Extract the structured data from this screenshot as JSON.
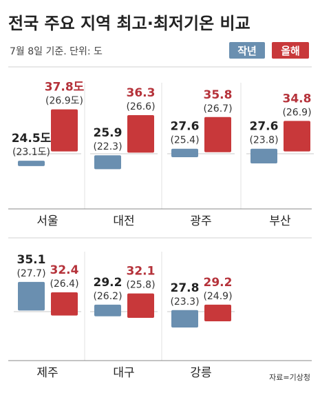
{
  "header": {
    "title": "전국 주요 지역 최고·최저기온 비교",
    "subtitle": "7월 8일 기준. 단위: 도"
  },
  "legend": {
    "last_year": "작년",
    "this_year": "올해"
  },
  "source": "자료=기상청",
  "colors": {
    "last_year": "#6a8fb0",
    "this_year": "#c8383a",
    "text_last": "#222222",
    "text_this": "#b5323a",
    "rule": "#d9d9d9",
    "gray_line": "#999999"
  },
  "chart_data": {
    "type": "bar",
    "categories": [
      "서울",
      "대전",
      "광주",
      "부산",
      "제주",
      "대구",
      "강릉"
    ],
    "series": [
      {
        "name": "작년",
        "max": [
          24.5,
          25.9,
          27.6,
          27.6,
          35.1,
          29.2,
          27.8
        ],
        "min": [
          23.1,
          22.3,
          25.4,
          23.8,
          27.7,
          26.2,
          23.3
        ],
        "max_labels": [
          "24.5도",
          "25.9",
          "27.6",
          "27.6",
          "35.1",
          "29.2",
          "27.8"
        ],
        "min_labels": [
          "(23.1도)",
          "(22.3)",
          "(25.4)",
          "(23.8)",
          "(27.7)",
          "(26.2)",
          "(23.3)"
        ]
      },
      {
        "name": "올해",
        "max": [
          37.8,
          36.3,
          35.8,
          34.8,
          32.4,
          32.1,
          29.2
        ],
        "min": [
          26.9,
          26.6,
          26.7,
          26.9,
          26.4,
          25.8,
          24.9
        ],
        "max_labels": [
          "37.8도",
          "36.3",
          "35.8",
          "34.8",
          "32.4",
          "32.1",
          "29.2"
        ],
        "min_labels": [
          "(26.9도)",
          "(26.6)",
          "(26.7)",
          "(26.9)",
          "(26.4)",
          "(25.8)",
          "(24.9)"
        ]
      }
    ],
    "rows": [
      {
        "cities": [
          "서울",
          "대전",
          "광주",
          "부산"
        ]
      },
      {
        "cities": [
          "제주",
          "대구",
          "강릉"
        ]
      }
    ]
  }
}
